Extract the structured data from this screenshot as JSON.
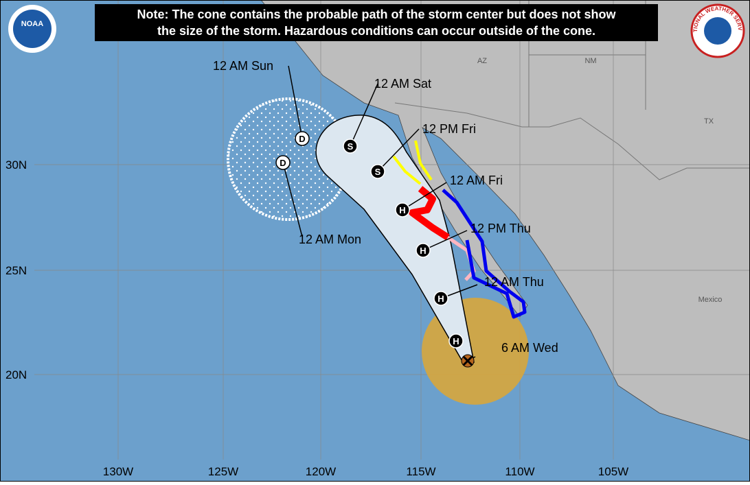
{
  "note": [
    "Note: The cone contains the probable path of the storm center but does not show",
    "the size of the storm. Hazardous conditions can occur outside of the cone."
  ],
  "logos": {
    "left": "NOAA",
    "right": "NATIONAL WEATHER SERVICE"
  },
  "regions": [
    "AZ",
    "NM",
    "TX",
    "Mexico"
  ],
  "latitude_labels": [
    "30N",
    "25N",
    "20N"
  ],
  "longitude_labels": [
    "130W",
    "125W",
    "120W",
    "115W",
    "110W",
    "105W"
  ],
  "track": [
    {
      "label": "6 AM Wed"
    },
    {
      "symbol": "H"
    },
    {
      "symbol": "H",
      "label": "12 AM Thu"
    },
    {
      "symbol": "H",
      "label": "12 PM Thu"
    },
    {
      "symbol": "H",
      "label": "12 AM Fri"
    },
    {
      "symbol": "S",
      "label": "12 PM Fri"
    },
    {
      "symbol": "S",
      "label": "12 AM Sat"
    },
    {
      "symbol": "D",
      "label": "12 AM Sun"
    },
    {
      "symbol": "D",
      "label": "12 AM Mon"
    }
  ]
}
